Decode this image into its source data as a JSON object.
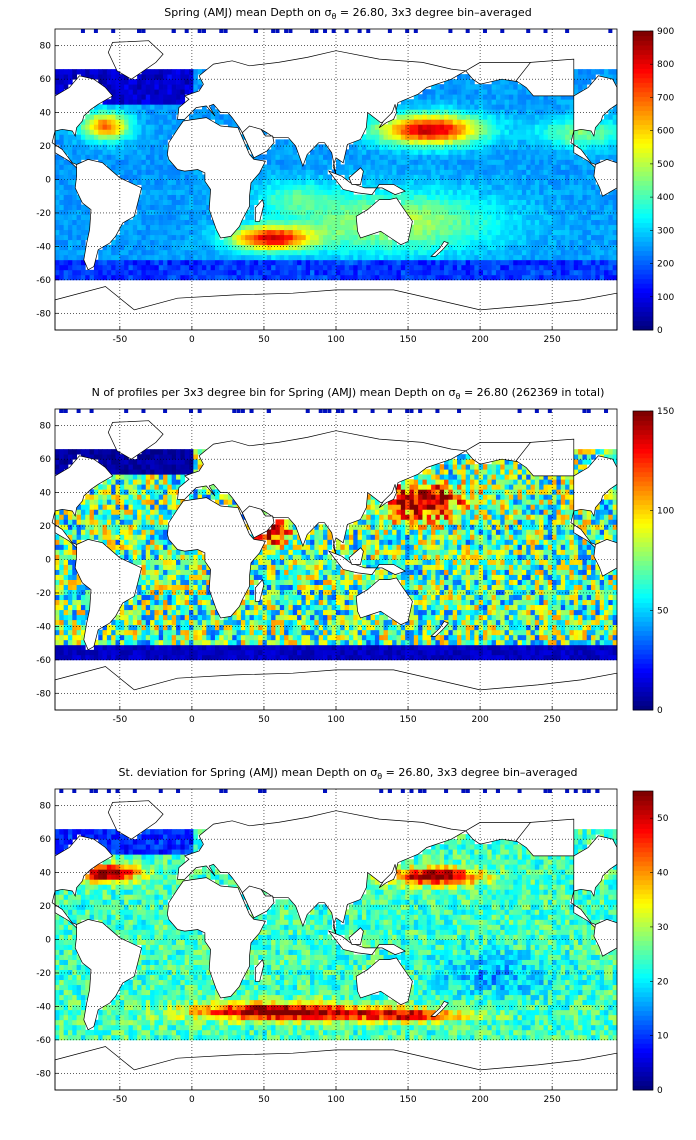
{
  "panels": [
    {
      "title_prefix": "Spring (AMJ) mean Depth on σ",
      "title_sub": "θ",
      "title_suffix": " = 26.80, 3x3 degree bin–averaged",
      "colorbar_ticks": [
        "0",
        "100",
        "200",
        "300",
        "400",
        "500",
        "600",
        "700",
        "800",
        "900"
      ],
      "vmax": 900,
      "field_kind": "depth"
    },
    {
      "title_prefix": "N of profiles per 3x3 degree bin for Spring (AMJ) mean Depth on σ",
      "title_sub": "θ",
      "title_suffix": " = 26.80 (262369 in total)",
      "colorbar_ticks": [
        "0",
        "50",
        "100",
        "150"
      ],
      "vmax": 150,
      "field_kind": "count"
    },
    {
      "title_prefix": "St. deviation for Spring (AMJ) mean Depth on σ",
      "title_sub": "θ",
      "title_suffix": " = 26.80, 3x3 degree bin–averaged",
      "colorbar_ticks": [
        "0",
        "10",
        "20",
        "30",
        "40",
        "50"
      ],
      "vmax": 55,
      "field_kind": "std"
    }
  ],
  "x_ticks": [
    "-50",
    "0",
    "50",
    "100",
    "150",
    "200",
    "250"
  ],
  "y_ticks": [
    "80",
    "60",
    "40",
    "20",
    "0",
    "-20",
    "-40",
    "-60",
    "-80"
  ],
  "colormap": "jet"
}
